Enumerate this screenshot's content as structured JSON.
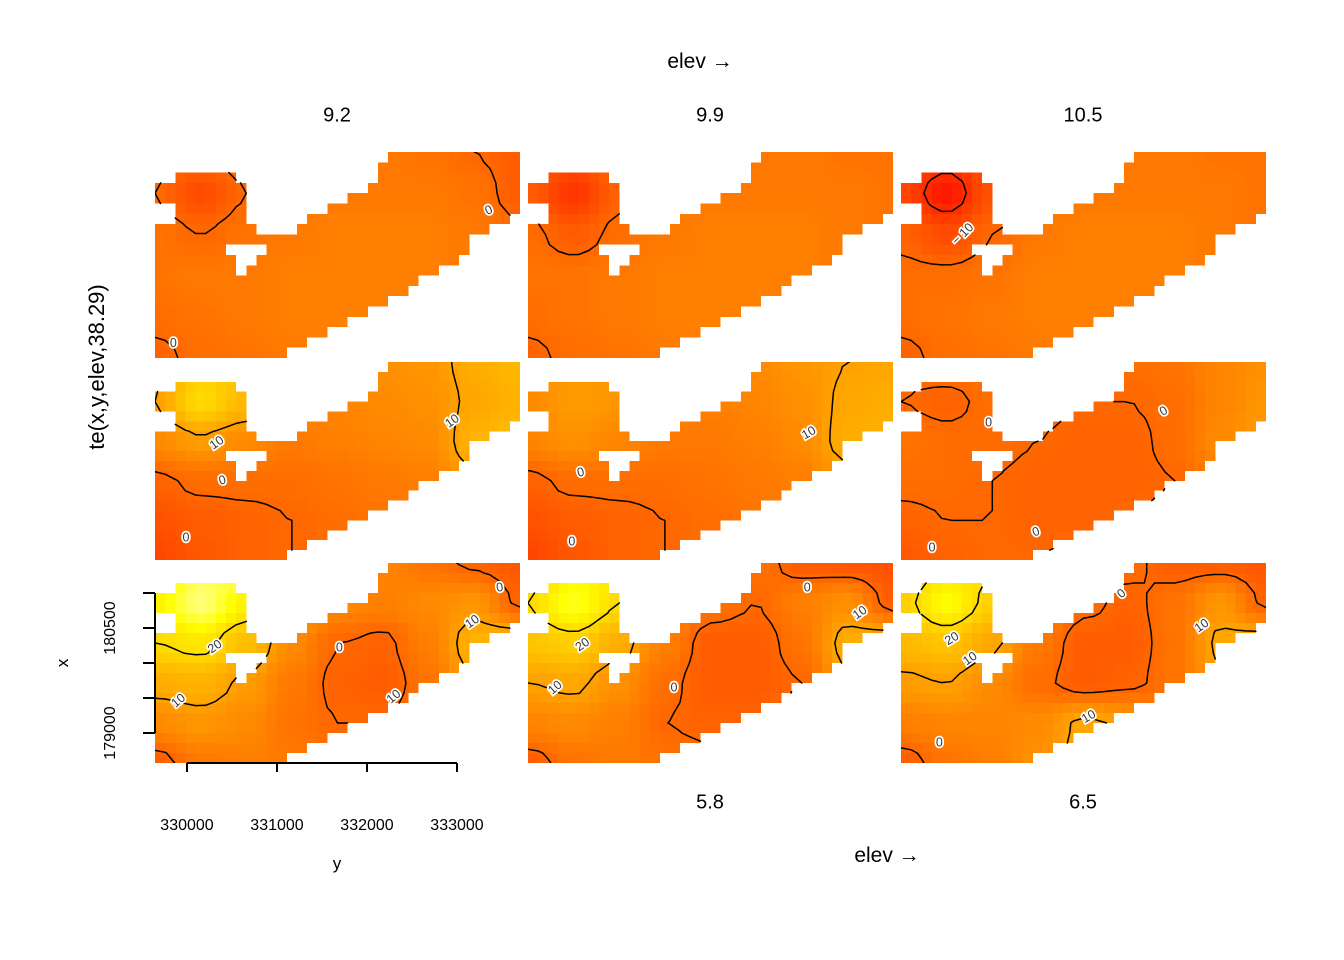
{
  "figure": {
    "top_title": "elev →",
    "bottom_title": "elev →",
    "left_label": "te(x,y,elev,38.29)",
    "background": "#ffffff"
  },
  "chart_data": {
    "type": "heatmap",
    "title": "elev →",
    "description": "3x3 grid of heatmap slices of smooth te(x,y,elev,38.29) at increasing elev values, heat colour scale (red=low, yellow/white=high) with black contour lines at levels -10, 0, 10, 20 over an irregular map-shaped region",
    "grid_dims": {
      "cols": 9,
      "rows": 6
    },
    "color_scale": {
      "palette": "heat",
      "vmin": -18,
      "vmax": 41
    },
    "x_axis": {
      "label": "y",
      "ticks": [
        "330000",
        "331000",
        "332000",
        "333000"
      ]
    },
    "y_axis": {
      "label": "x",
      "tick_labels": [
        "180500",
        "179000"
      ],
      "n_ticks": 5
    },
    "mask": [
      "000000000000000000000001111111111111",
      "000000000000000000000011111111111111",
      "001111110000000000000011111111111111",
      "111111111000000000000111111111111111",
      "111111111000000000011111111111111111",
      "001111111000000001111111111111111111",
      "001111111000000111111111111111111110",
      "111111111100001111111111111111111000",
      "111111111111111111111111111111100000",
      "111111100001111111111111111111100000",
      "111111110011111111111111111111000000",
      "111111110111111111111111111100000000",
      "111111111111111111111111110000000000",
      "111111111111111111111111100000000000",
      "111111111111111111111110000000000000",
      "111111111111111111111000000000000000",
      "111111111111111111100000000000000000",
      "111111111111111110000000000000000000",
      "111111111111111000000000000000000000",
      "111111111111100000000000000000000000"
    ],
    "panels": [
      {
        "id": "r1c1",
        "slice_label": "9.2",
        "contour_levels": [
          -10,
          0,
          10,
          20
        ],
        "grid": [
          [
            2,
            1,
            2,
            3,
            3,
            3,
            2,
            0,
            -2
          ],
          [
            0,
            -5,
            0,
            3,
            3,
            3,
            3,
            2,
            -2
          ],
          [
            2,
            0,
            2,
            3,
            4,
            4,
            4,
            3,
            1
          ],
          [
            2,
            3,
            3,
            4,
            4,
            4,
            4,
            3,
            2
          ],
          [
            1,
            2,
            3,
            4,
            4,
            4,
            4,
            4,
            3
          ],
          [
            -1,
            1,
            2,
            3,
            3,
            3,
            3,
            3,
            3
          ]
        ],
        "contour_labels": [
          {
            "text": "0",
            "u": 0.915,
            "v": 0.285,
            "angle": -25
          },
          {
            "text": "0",
            "u": 0.05,
            "v": 0.93,
            "angle": 0
          }
        ]
      },
      {
        "id": "r1c2",
        "slice_label": "9.9",
        "contour_levels": [
          -10,
          0,
          10,
          20
        ],
        "grid": [
          [
            0,
            -2,
            1,
            3,
            3,
            3,
            3,
            2,
            2
          ],
          [
            -2,
            -9,
            -1,
            3,
            3,
            3,
            3,
            3,
            2
          ],
          [
            1,
            -2,
            1,
            3,
            4,
            4,
            4,
            3,
            2
          ],
          [
            2,
            2,
            3,
            4,
            4,
            4,
            4,
            3,
            3
          ],
          [
            1,
            2,
            3,
            4,
            4,
            4,
            4,
            4,
            3
          ],
          [
            -1,
            1,
            2,
            3,
            3,
            3,
            3,
            3,
            3
          ]
        ],
        "contour_labels": []
      },
      {
        "id": "r1c3",
        "slice_label": "10.5",
        "contour_levels": [
          -10,
          0,
          10,
          20
        ],
        "grid": [
          [
            -2,
            -6,
            -2,
            2,
            3,
            3,
            3,
            2,
            2
          ],
          [
            -6,
            -14,
            -4,
            2,
            3,
            3,
            3,
            3,
            2
          ],
          [
            -1,
            -5,
            0,
            3,
            4,
            4,
            4,
            3,
            2
          ],
          [
            1,
            1,
            2,
            4,
            4,
            4,
            4,
            3,
            3
          ],
          [
            1,
            2,
            3,
            4,
            4,
            4,
            4,
            4,
            3
          ],
          [
            -1,
            1,
            2,
            3,
            3,
            3,
            3,
            3,
            3
          ]
        ],
        "contour_labels": [
          {
            "text": "− 10",
            "u": 0.17,
            "v": 0.4,
            "angle": -45
          }
        ]
      },
      {
        "id": "r2c1",
        "slice_label": "",
        "contour_levels": [
          -10,
          0,
          10,
          20
        ],
        "grid": [
          [
            8,
            16,
            18,
            8,
            6,
            7,
            8,
            12,
            14
          ],
          [
            10,
            20,
            14,
            6,
            5,
            6,
            7,
            11,
            13
          ],
          [
            6,
            9,
            6,
            3,
            4,
            5,
            6,
            13,
            15
          ],
          [
            -1,
            1,
            1,
            1,
            2,
            3,
            4,
            9,
            12
          ],
          [
            -4,
            -2,
            -1,
            0,
            1,
            2,
            3,
            5,
            8
          ],
          [
            -6,
            -3,
            -1,
            0,
            1,
            2,
            3,
            4,
            5
          ]
        ],
        "contour_labels": [
          {
            "text": "10",
            "u": 0.17,
            "v": 0.41,
            "angle": -35
          },
          {
            "text": "0",
            "u": 0.185,
            "v": 0.6,
            "angle": -15
          },
          {
            "text": "0",
            "u": 0.085,
            "v": 0.89,
            "angle": 0
          },
          {
            "text": "10",
            "u": 0.815,
            "v": 0.3,
            "angle": -35
          }
        ]
      },
      {
        "id": "r2c2",
        "slice_label": "",
        "contour_levels": [
          -10,
          0,
          10,
          20
        ],
        "grid": [
          [
            5,
            8,
            9,
            6,
            5,
            6,
            8,
            10,
            11
          ],
          [
            6,
            9,
            8,
            5,
            4,
            5,
            7,
            11,
            12
          ],
          [
            5,
            7,
            5,
            3,
            3,
            4,
            6,
            12,
            13
          ],
          [
            -1,
            1,
            1,
            1,
            2,
            3,
            4,
            8,
            11
          ],
          [
            -4,
            -2,
            -1,
            0,
            1,
            2,
            3,
            5,
            7
          ],
          [
            -6,
            -3,
            -1,
            0,
            1,
            2,
            3,
            4,
            5
          ]
        ],
        "contour_labels": [
          {
            "text": "0",
            "u": 0.145,
            "v": 0.56,
            "angle": -15
          },
          {
            "text": "0",
            "u": 0.12,
            "v": 0.91,
            "angle": 0
          },
          {
            "text": "10",
            "u": 0.77,
            "v": 0.36,
            "angle": -30
          }
        ]
      },
      {
        "id": "r2c3",
        "slice_label": "",
        "contour_levels": [
          -10,
          0,
          10,
          20
        ],
        "grid": [
          [
            1,
            2,
            3,
            2,
            1,
            1,
            2,
            5,
            7
          ],
          [
            0,
            -1,
            1,
            1,
            0,
            0,
            1,
            5,
            8
          ],
          [
            2,
            1,
            1,
            0,
            -1,
            -1,
            1,
            6,
            9
          ],
          [
            1,
            1,
            0,
            -1,
            -1,
            -1,
            0,
            4,
            7
          ],
          [
            -1,
            0,
            0,
            -1,
            -1,
            0,
            1,
            3,
            5
          ],
          [
            -3,
            -1,
            0,
            0,
            1,
            1,
            2,
            2,
            3
          ]
        ],
        "contour_labels": [
          {
            "text": "0",
            "u": 0.24,
            "v": 0.31,
            "angle": 0
          },
          {
            "text": "0",
            "u": 0.72,
            "v": 0.25,
            "angle": -30
          },
          {
            "text": "0",
            "u": 0.085,
            "v": 0.94,
            "angle": 0
          },
          {
            "text": "0",
            "u": 0.37,
            "v": 0.86,
            "angle": -20
          }
        ]
      },
      {
        "id": "r3c1",
        "slice_label": "",
        "contour_levels": [
          -10,
          0,
          10,
          20
        ],
        "grid": [
          [
            20,
            30,
            38,
            14,
            8,
            5,
            2,
            -1,
            -3
          ],
          [
            24,
            34,
            24,
            12,
            6,
            4,
            6,
            8,
            -1
          ],
          [
            20,
            22,
            15,
            6,
            0,
            -1,
            4,
            13,
            15
          ],
          [
            12,
            13,
            9,
            3,
            -1,
            -2,
            2,
            10,
            13
          ],
          [
            6,
            8,
            6,
            2,
            0,
            0,
            3,
            8,
            10
          ],
          [
            -2,
            3,
            4,
            3,
            2,
            2,
            3,
            4,
            5
          ]
        ],
        "contour_labels": [
          {
            "text": "20",
            "u": 0.165,
            "v": 0.42,
            "angle": -35
          },
          {
            "text": "10",
            "u": 0.065,
            "v": 0.69,
            "angle": -40
          },
          {
            "text": "0",
            "u": 0.505,
            "v": 0.425,
            "angle": 0
          },
          {
            "text": "0",
            "u": 0.945,
            "v": 0.125,
            "angle": -10
          },
          {
            "text": "10",
            "u": 0.87,
            "v": 0.295,
            "angle": -35
          },
          {
            "text": "10",
            "u": 0.655,
            "v": 0.67,
            "angle": -40
          }
        ]
      },
      {
        "id": "r3c2",
        "slice_label": "5.8",
        "contour_levels": [
          -10,
          0,
          10,
          20
        ],
        "grid": [
          [
            16,
            22,
            24,
            10,
            5,
            2,
            -2,
            -3,
            -4
          ],
          [
            20,
            28,
            20,
            9,
            2,
            0,
            4,
            7,
            -2
          ],
          [
            16,
            18,
            12,
            4,
            -2,
            -2,
            2,
            12,
            14
          ],
          [
            10,
            11,
            7,
            1,
            -2,
            -2,
            0,
            9,
            12
          ],
          [
            5,
            6,
            4,
            0,
            -1,
            -1,
            2,
            7,
            9
          ],
          [
            -2,
            2,
            3,
            2,
            1,
            1,
            2,
            3,
            4
          ]
        ],
        "contour_labels": [
          {
            "text": "20",
            "u": 0.15,
            "v": 0.41,
            "angle": -35
          },
          {
            "text": "10",
            "u": 0.075,
            "v": 0.625,
            "angle": -40
          },
          {
            "text": "0",
            "u": 0.4,
            "v": 0.625,
            "angle": 0
          },
          {
            "text": "0",
            "u": 0.765,
            "v": 0.125,
            "angle": 0
          },
          {
            "text": "10",
            "u": 0.91,
            "v": 0.25,
            "angle": -35
          }
        ]
      },
      {
        "id": "r3c3",
        "slice_label": "6.5",
        "contour_levels": [
          -10,
          0,
          10,
          20
        ],
        "grid": [
          [
            14,
            20,
            22,
            9,
            4,
            1,
            -2,
            -2,
            -3
          ],
          [
            18,
            26,
            18,
            8,
            1,
            -1,
            2,
            8,
            -1
          ],
          [
            14,
            16,
            11,
            3,
            -2,
            -2,
            2,
            11,
            13
          ],
          [
            9,
            10,
            6,
            1,
            -2,
            -1,
            2,
            9,
            12
          ],
          [
            4,
            5,
            5,
            6,
            11,
            9,
            4,
            6,
            8
          ],
          [
            -2,
            2,
            4,
            7,
            12,
            10,
            6,
            5,
            6
          ]
        ],
        "contour_labels": [
          {
            "text": "20",
            "u": 0.14,
            "v": 0.38,
            "angle": -30
          },
          {
            "text": "10",
            "u": 0.19,
            "v": 0.48,
            "angle": -35
          },
          {
            "text": "0",
            "u": 0.105,
            "v": 0.9,
            "angle": 0
          },
          {
            "text": "0",
            "u": 0.605,
            "v": 0.155,
            "angle": -40
          },
          {
            "text": "10",
            "u": 0.825,
            "v": 0.315,
            "angle": -35
          },
          {
            "text": "10",
            "u": 0.515,
            "v": 0.77,
            "angle": -30
          }
        ]
      }
    ]
  }
}
